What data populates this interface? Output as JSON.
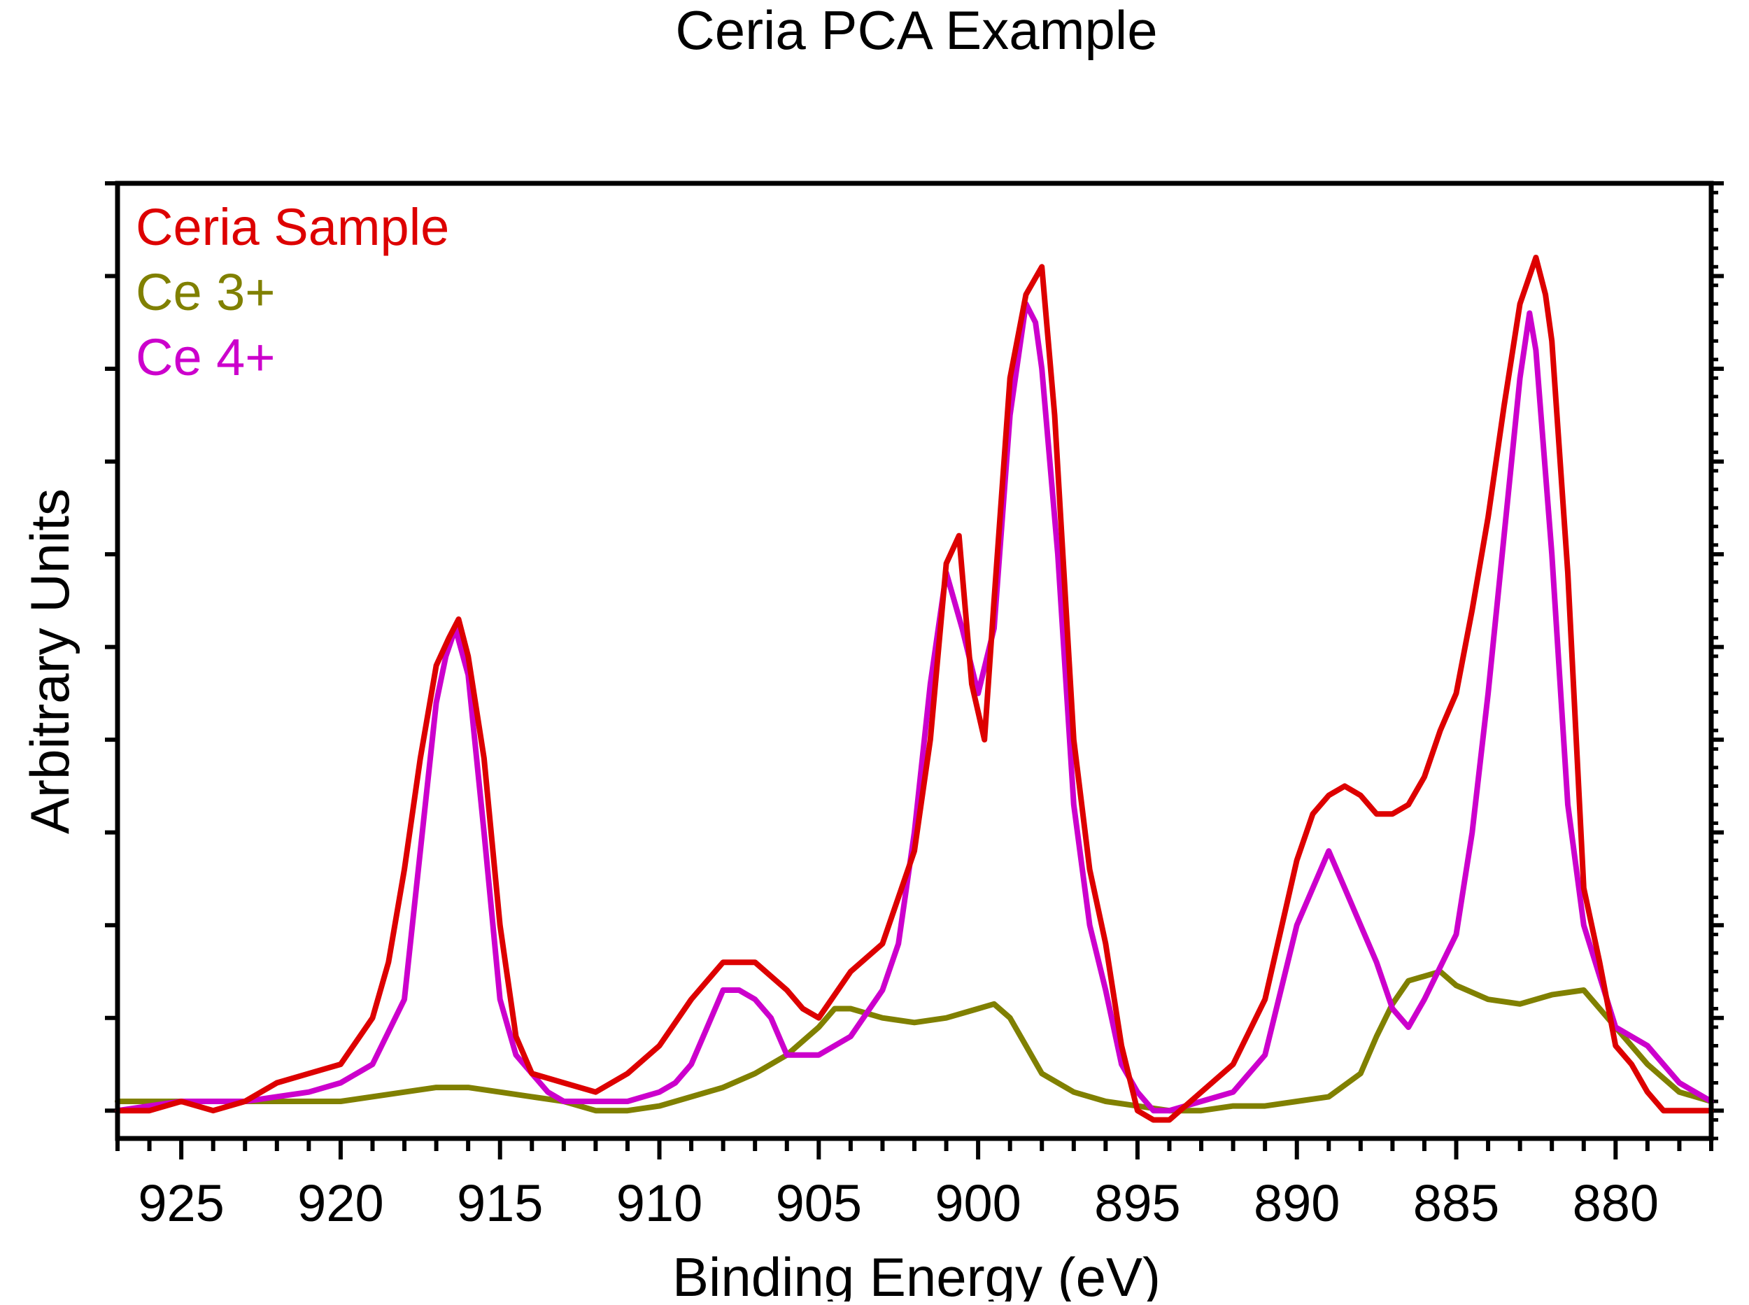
{
  "chart_data": {
    "type": "line",
    "title": "Ceria PCA Example",
    "xlabel": "Binding Energy (eV)",
    "ylabel": "Arbitrary Units",
    "xlim": [
      927,
      877
    ],
    "ylim": [
      -0.03,
      1.0
    ],
    "x_reversed": true,
    "x_ticks": [
      925,
      920,
      915,
      910,
      905,
      900,
      895,
      890,
      885,
      880
    ],
    "y_ticks": [
      0.0,
      0.1,
      0.2,
      0.3,
      0.4,
      0.5,
      0.6,
      0.7,
      0.8,
      0.9,
      1.0
    ],
    "y_tick_labels_shown": false,
    "legend_position": "top-left",
    "series": [
      {
        "name": "Ceria Sample",
        "color": "#dd0000",
        "x": [
          927.0,
          926.0,
          925.0,
          924.0,
          923.0,
          922.0,
          921.0,
          920.0,
          919.0,
          918.5,
          918.0,
          917.5,
          917.0,
          916.6,
          916.3,
          916.0,
          915.5,
          915.0,
          914.5,
          914.0,
          913.0,
          912.0,
          911.0,
          910.0,
          909.0,
          908.0,
          907.0,
          906.0,
          905.5,
          905.0,
          904.0,
          903.0,
          902.0,
          901.5,
          901.0,
          900.6,
          900.2,
          899.8,
          899.5,
          899.0,
          898.5,
          898.0,
          897.6,
          897.0,
          896.5,
          896.0,
          895.5,
          895.0,
          894.5,
          894.0,
          893.0,
          892.0,
          891.0,
          890.0,
          889.5,
          889.0,
          888.5,
          888.0,
          887.5,
          887.0,
          886.5,
          886.0,
          885.5,
          885.0,
          884.5,
          884.0,
          883.5,
          883.0,
          882.5,
          882.2,
          882.0,
          881.5,
          881.0,
          880.5,
          880.0,
          879.5,
          879.0,
          878.5,
          878.0,
          877.0
        ],
        "values": [
          0.0,
          0.0,
          0.01,
          0.0,
          0.01,
          0.03,
          0.04,
          0.05,
          0.1,
          0.16,
          0.26,
          0.38,
          0.48,
          0.51,
          0.53,
          0.49,
          0.38,
          0.2,
          0.08,
          0.04,
          0.03,
          0.02,
          0.04,
          0.07,
          0.12,
          0.16,
          0.16,
          0.13,
          0.11,
          0.1,
          0.15,
          0.18,
          0.28,
          0.4,
          0.59,
          0.62,
          0.46,
          0.4,
          0.55,
          0.79,
          0.88,
          0.91,
          0.75,
          0.4,
          0.26,
          0.18,
          0.07,
          0.0,
          -0.01,
          -0.01,
          0.02,
          0.05,
          0.12,
          0.27,
          0.32,
          0.34,
          0.35,
          0.34,
          0.32,
          0.32,
          0.33,
          0.36,
          0.41,
          0.45,
          0.54,
          0.64,
          0.76,
          0.87,
          0.92,
          0.88,
          0.83,
          0.58,
          0.24,
          0.16,
          0.07,
          0.05,
          0.02,
          0.0,
          0.0,
          0.0
        ]
      },
      {
        "name": "Ce 3+",
        "color": "#808000",
        "x": [
          927.0,
          924.0,
          920.0,
          918.0,
          917.0,
          916.0,
          915.0,
          914.0,
          913.0,
          912.0,
          911.0,
          910.0,
          909.0,
          908.0,
          907.0,
          906.0,
          905.0,
          904.5,
          904.0,
          903.0,
          902.0,
          901.0,
          900.0,
          899.5,
          899.0,
          898.5,
          898.0,
          897.0,
          896.0,
          895.0,
          894.0,
          893.0,
          892.0,
          891.0,
          890.0,
          889.0,
          888.0,
          887.5,
          887.0,
          886.5,
          886.0,
          885.5,
          885.0,
          884.0,
          883.0,
          882.0,
          881.0,
          880.0,
          879.0,
          878.0,
          877.0
        ],
        "values": [
          0.01,
          0.01,
          0.01,
          0.02,
          0.025,
          0.025,
          0.02,
          0.015,
          0.01,
          0.0,
          0.0,
          0.005,
          0.015,
          0.025,
          0.04,
          0.06,
          0.09,
          0.11,
          0.11,
          0.1,
          0.095,
          0.1,
          0.11,
          0.115,
          0.1,
          0.07,
          0.04,
          0.02,
          0.01,
          0.005,
          0.0,
          0.0,
          0.005,
          0.005,
          0.01,
          0.015,
          0.04,
          0.08,
          0.115,
          0.14,
          0.145,
          0.15,
          0.135,
          0.12,
          0.115,
          0.125,
          0.13,
          0.09,
          0.05,
          0.02,
          0.01
        ]
      },
      {
        "name": "Ce 4+",
        "color": "#cc00cc",
        "x": [
          927.0,
          925.0,
          923.0,
          921.0,
          920.0,
          919.0,
          918.0,
          917.5,
          917.0,
          916.7,
          916.4,
          916.0,
          915.5,
          915.0,
          914.5,
          914.0,
          913.5,
          913.0,
          912.0,
          911.0,
          910.0,
          909.5,
          909.0,
          908.5,
          908.0,
          907.5,
          907.0,
          906.5,
          906.0,
          905.5,
          905.0,
          904.0,
          903.0,
          902.5,
          902.0,
          901.5,
          901.0,
          900.5,
          900.0,
          899.5,
          899.0,
          898.5,
          898.2,
          898.0,
          897.5,
          897.0,
          896.5,
          896.0,
          895.5,
          895.0,
          894.5,
          894.0,
          893.0,
          892.0,
          891.0,
          890.0,
          889.5,
          889.0,
          888.5,
          888.0,
          887.5,
          887.0,
          886.5,
          886.0,
          885.0,
          884.5,
          884.0,
          883.5,
          883.0,
          882.7,
          882.5,
          882.0,
          881.5,
          881.0,
          880.0,
          879.0,
          878.0,
          877.0
        ],
        "values": [
          0.0,
          0.01,
          0.01,
          0.02,
          0.03,
          0.05,
          0.12,
          0.28,
          0.44,
          0.49,
          0.52,
          0.47,
          0.3,
          0.12,
          0.06,
          0.04,
          0.02,
          0.01,
          0.01,
          0.01,
          0.02,
          0.03,
          0.05,
          0.09,
          0.13,
          0.13,
          0.12,
          0.1,
          0.06,
          0.06,
          0.06,
          0.08,
          0.13,
          0.18,
          0.3,
          0.46,
          0.58,
          0.52,
          0.45,
          0.52,
          0.75,
          0.87,
          0.85,
          0.8,
          0.6,
          0.33,
          0.2,
          0.13,
          0.05,
          0.02,
          0.0,
          0.0,
          0.01,
          0.02,
          0.06,
          0.2,
          0.24,
          0.28,
          0.24,
          0.2,
          0.16,
          0.11,
          0.09,
          0.12,
          0.19,
          0.3,
          0.45,
          0.62,
          0.79,
          0.86,
          0.82,
          0.6,
          0.33,
          0.2,
          0.09,
          0.07,
          0.03,
          0.01
        ]
      }
    ]
  }
}
